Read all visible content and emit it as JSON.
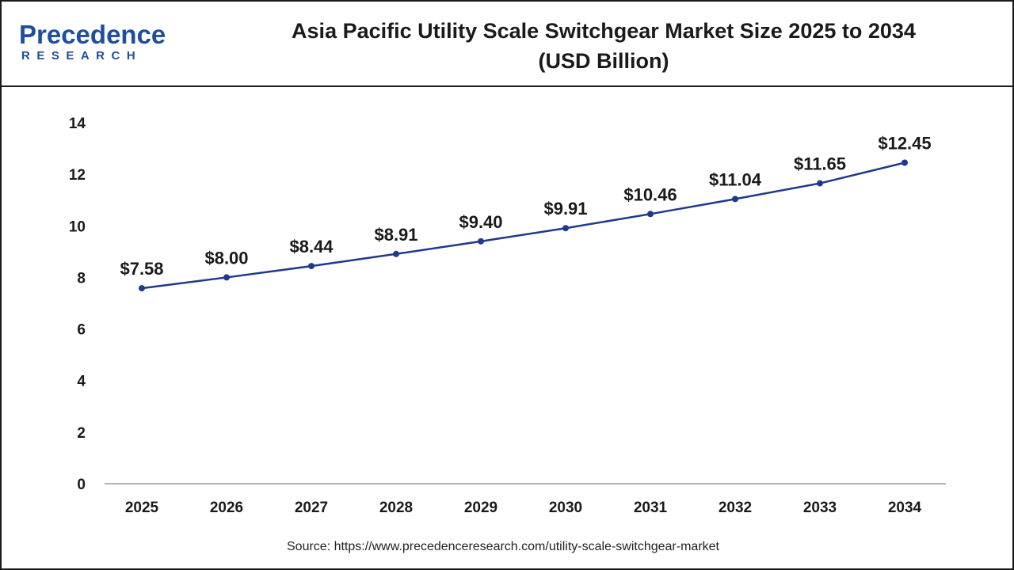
{
  "logo": {
    "word": "Precedence",
    "sub": "RESEARCH"
  },
  "title_line1": "Asia Pacific Utility Scale Switchgear Market Size 2025 to 2034",
  "title_line2": "(USD Billion)",
  "source": "Source: https://www.precedenceresearch.com/utility-scale-switchgear-market",
  "colors": {
    "line": "#1f3a8a",
    "marker": "#1f3a8a",
    "brand": "#1f4e9c",
    "axis": "#9a9a9a"
  },
  "chart_data": {
    "type": "line",
    "categories": [
      "2025",
      "2026",
      "2027",
      "2028",
      "2029",
      "2030",
      "2031",
      "2032",
      "2033",
      "2034"
    ],
    "series": [
      {
        "values": [
          7.58,
          8.0,
          8.44,
          8.91,
          9.4,
          9.91,
          10.46,
          11.04,
          11.65,
          12.45
        ]
      }
    ],
    "data_labels": [
      "$7.58",
      "$8.00",
      "$8.44",
      "$8.91",
      "$9.40",
      "$9.91",
      "$10.46",
      "$11.04",
      "$11.65",
      "$12.45"
    ],
    "ylim": [
      0,
      14
    ],
    "yticks": [
      0,
      2,
      4,
      6,
      8,
      10,
      12,
      14
    ],
    "ytick_labels": [
      "0",
      "2",
      "4",
      "6",
      "8",
      "10",
      "12",
      "14"
    ],
    "grid": false,
    "legend": "none",
    "xlabel": "",
    "ylabel": ""
  }
}
